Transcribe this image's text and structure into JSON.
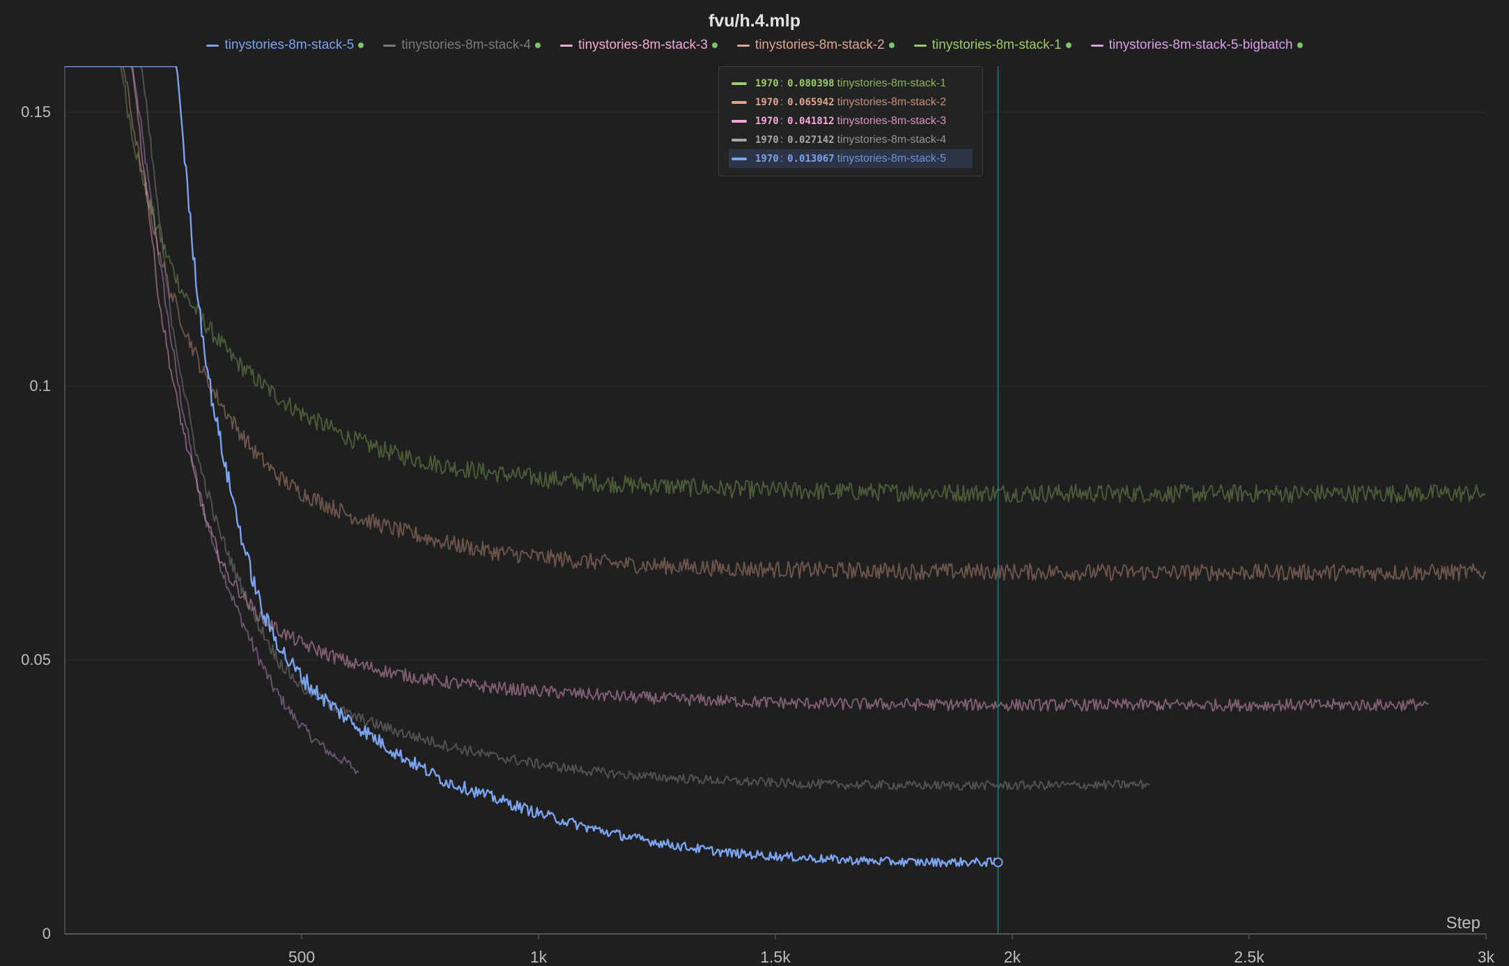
{
  "chart_data": {
    "type": "line",
    "title": "fvu/h.4.mlp",
    "xlabel": "Step",
    "ylabel": "",
    "xlim": [
      0,
      3000
    ],
    "ylim": [
      0,
      0.16
    ],
    "x_ticks": [
      500,
      1000,
      1500,
      2000,
      2500,
      3000
    ],
    "x_tick_labels": [
      "500",
      "1k",
      "1.5k",
      "2k",
      "2.5k",
      "3k"
    ],
    "y_ticks": [
      0,
      0.05,
      0.1,
      0.15
    ],
    "y_tick_labels": [
      "0",
      "0.05",
      "0.1",
      "0.15"
    ],
    "grid": true,
    "legend_position": "top-center",
    "hover_step": 1970,
    "series": [
      {
        "name": "tinystories-8m-stack-5",
        "color": "#7aa3f0",
        "x": [
          235,
          250,
          270,
          290,
          310,
          340,
          380,
          420,
          470,
          520,
          600,
          700,
          800,
          900,
          1000,
          1100,
          1200,
          1300,
          1400,
          1500,
          1600,
          1700,
          1800,
          1900,
          1970
        ],
        "y": [
          0.16,
          0.145,
          0.125,
          0.11,
          0.098,
          0.085,
          0.07,
          0.058,
          0.05,
          0.045,
          0.039,
          0.033,
          0.028,
          0.025,
          0.022,
          0.0195,
          0.0175,
          0.016,
          0.0148,
          0.0142,
          0.0137,
          0.0133,
          0.0131,
          0.0131,
          0.013067
        ]
      },
      {
        "name": "tinystories-8m-stack-4",
        "color": "#7a7a7a",
        "x": [
          160,
          180,
          200,
          220,
          250,
          280,
          320,
          360,
          400,
          450,
          500,
          600,
          700,
          800,
          900,
          1000,
          1100,
          1200,
          1400,
          1600,
          1800,
          2000,
          2200,
          2290
        ],
        "y": [
          0.16,
          0.145,
          0.13,
          0.115,
          0.1,
          0.087,
          0.075,
          0.066,
          0.058,
          0.05,
          0.045,
          0.04,
          0.037,
          0.0345,
          0.0325,
          0.031,
          0.0298,
          0.0289,
          0.0279,
          0.0273,
          0.0271,
          0.0271,
          0.0272,
          0.0273
        ]
      },
      {
        "name": "tinystories-8m-stack-3",
        "color": "#f5a9d8",
        "x": [
          140,
          160,
          180,
          200,
          230,
          260,
          300,
          340,
          400,
          450,
          500,
          600,
          700,
          800,
          900,
          1000,
          1200,
          1400,
          1600,
          1800,
          2000,
          2200,
          2400,
          2600,
          2800,
          2880
        ],
        "y": [
          0.16,
          0.145,
          0.13,
          0.115,
          0.1,
          0.088,
          0.075,
          0.066,
          0.059,
          0.0555,
          0.053,
          0.0495,
          0.0475,
          0.046,
          0.045,
          0.0443,
          0.0432,
          0.0425,
          0.042,
          0.0419,
          0.0418,
          0.0418,
          0.0418,
          0.0418,
          0.0418,
          0.042
        ]
      },
      {
        "name": "tinystories-8m-stack-2",
        "color": "#e0a58f",
        "x": [
          120,
          140,
          160,
          190,
          220,
          260,
          300,
          350,
          400,
          450,
          500,
          600,
          700,
          800,
          900,
          1000,
          1100,
          1200,
          1400,
          1600,
          1800,
          2000,
          2200,
          2400,
          2600,
          2800,
          3000
        ],
        "y": [
          0.16,
          0.15,
          0.14,
          0.128,
          0.118,
          0.109,
          0.101,
          0.094,
          0.088,
          0.0835,
          0.0805,
          0.0765,
          0.0738,
          0.0715,
          0.0698,
          0.0688,
          0.068,
          0.0674,
          0.0667,
          0.0664,
          0.0662,
          0.0661,
          0.066,
          0.066,
          0.066,
          0.066,
          0.066
        ]
      },
      {
        "name": "tinystories-8m-stack-1",
        "color": "#9ccc65",
        "x": [
          115,
          130,
          150,
          180,
          210,
          250,
          300,
          350,
          400,
          450,
          500,
          600,
          700,
          800,
          900,
          1000,
          1100,
          1200,
          1400,
          1600,
          1800,
          2000,
          2200,
          2400,
          2600,
          2800,
          3000
        ],
        "y": [
          0.16,
          0.152,
          0.143,
          0.133,
          0.125,
          0.117,
          0.111,
          0.1055,
          0.1015,
          0.098,
          0.095,
          0.0905,
          0.0875,
          0.0855,
          0.0842,
          0.0832,
          0.0825,
          0.082,
          0.0812,
          0.0808,
          0.0806,
          0.0805,
          0.0804,
          0.0804,
          0.0804,
          0.0804,
          0.0804
        ]
      },
      {
        "name": "tinystories-8m-stack-5-bigbatch",
        "color": "#d8a0e8",
        "x": [
          140,
          160,
          180,
          200,
          220,
          240,
          260,
          280,
          300,
          330,
          360,
          400,
          440,
          480,
          520,
          560,
          600,
          620
        ],
        "y": [
          0.16,
          0.148,
          0.135,
          0.123,
          0.111,
          0.1,
          0.091,
          0.082,
          0.075,
          0.067,
          0.06,
          0.052,
          0.045,
          0.04,
          0.036,
          0.033,
          0.031,
          0.0295
        ]
      }
    ]
  },
  "tooltip": {
    "rows": [
      {
        "step": "1970",
        "value": "0.080398",
        "name": "tinystories-8m-stack-1",
        "color": "#9ccc65"
      },
      {
        "step": "1970",
        "value": "0.065942",
        "name": "tinystories-8m-stack-2",
        "color": "#e0a58f"
      },
      {
        "step": "1970",
        "value": "0.041812",
        "name": "tinystories-8m-stack-3",
        "color": "#f5a9d8"
      },
      {
        "step": "1970",
        "value": "0.027142",
        "name": "tinystories-8m-stack-4",
        "color": "#a8a8a8"
      },
      {
        "step": "1970",
        "value": "0.013067",
        "name": "tinystories-8m-stack-5",
        "color": "#7aa3f0"
      }
    ]
  },
  "colors": {
    "background": "#1f1f1f",
    "grid": "#2e2e2e",
    "axis": "#555555",
    "hover_line": "#2b7a78",
    "status_dot": "#7ec46a"
  }
}
